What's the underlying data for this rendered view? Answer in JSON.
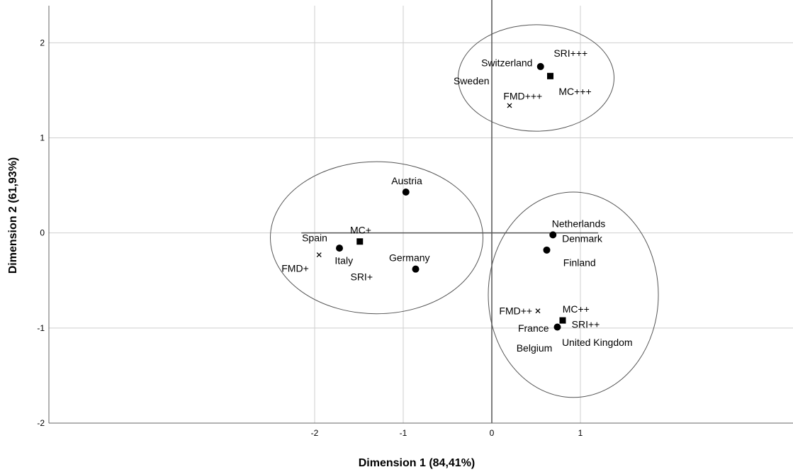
{
  "chart_data": {
    "type": "scatter",
    "xlabel": "Dimension 1 (84,41%)",
    "ylabel": "Dimension 2 (61,93%)",
    "xlim": [
      -5.0,
      3.4
    ],
    "ylim": [
      -2.0,
      2.45
    ],
    "x_ticks": [
      {
        "value": -2,
        "label": "-2"
      },
      {
        "value": -1,
        "label": "-1"
      },
      {
        "value": 0,
        "label": "0"
      },
      {
        "value": 1,
        "label": "1"
      }
    ],
    "y_ticks": [
      {
        "value": -2,
        "label": "-2"
      },
      {
        "value": -1,
        "label": "-1"
      },
      {
        "value": 0,
        "label": "0"
      },
      {
        "value": 1,
        "label": "1"
      },
      {
        "value": 2,
        "label": "2"
      }
    ],
    "grid": true,
    "legend": "none",
    "reference_lines": {
      "x0_line": {
        "from": -2.0,
        "to": 2.45
      },
      "y0_line": {
        "from": -2.15,
        "to": 1.2
      }
    },
    "groups": [
      {
        "cx": -1.3,
        "cy": -0.05,
        "rx": 1.2,
        "ry": 0.8
      },
      {
        "cx": 0.92,
        "cy": -0.65,
        "rx": 0.96,
        "ry": 1.08
      },
      {
        "cx": 0.5,
        "cy": 1.63,
        "rx": 0.88,
        "ry": 0.56
      }
    ],
    "points": [
      {
        "name": "Switzerland",
        "x": 0.55,
        "y": 1.75,
        "marker": "circle"
      },
      {
        "name": "Sweden",
        "x": 0.55,
        "y": 1.75,
        "marker": "circle"
      },
      {
        "name": "SRI+++",
        "x": 0.66,
        "y": 1.65,
        "marker": "square"
      },
      {
        "name": "MC+++",
        "x": 0.66,
        "y": 1.65,
        "marker": "square"
      },
      {
        "name": "FMD+++",
        "x": 0.2,
        "y": 1.34,
        "marker": "cross"
      },
      {
        "name": "Austria",
        "x": -0.97,
        "y": 0.43,
        "marker": "circle"
      },
      {
        "name": "Spain",
        "x": -1.72,
        "y": -0.16,
        "marker": "circle"
      },
      {
        "name": "Italy",
        "x": -1.72,
        "y": -0.16,
        "marker": "circle"
      },
      {
        "name": "MC+",
        "x": -1.49,
        "y": -0.09,
        "marker": "square"
      },
      {
        "name": "SRI+",
        "x": -1.49,
        "y": -0.09,
        "marker": "square"
      },
      {
        "name": "FMD+",
        "x": -1.95,
        "y": -0.23,
        "marker": "cross"
      },
      {
        "name": "Germany",
        "x": -0.86,
        "y": -0.38,
        "marker": "circle"
      },
      {
        "name": "Netherlands",
        "x": 0.69,
        "y": -0.02,
        "marker": "circle"
      },
      {
        "name": "Denmark",
        "x": 0.69,
        "y": -0.02,
        "marker": "circle"
      },
      {
        "name": "Finland",
        "x": 0.62,
        "y": -0.18,
        "marker": "circle"
      },
      {
        "name": "MC++",
        "x": 0.8,
        "y": -0.92,
        "marker": "square"
      },
      {
        "name": "SRI++",
        "x": 0.8,
        "y": -0.92,
        "marker": "square"
      },
      {
        "name": "France",
        "x": 0.74,
        "y": -0.99,
        "marker": "circle"
      },
      {
        "name": "Belgium",
        "x": 0.74,
        "y": -0.99,
        "marker": "circle"
      },
      {
        "name": "United Kingdom",
        "x": 0.74,
        "y": -0.99,
        "marker": "circle"
      },
      {
        "name": "FMD++",
        "x": 0.52,
        "y": -0.82,
        "marker": "cross"
      }
    ],
    "point_labels": [
      {
        "text": "Switzerland",
        "x": 0.17,
        "y": 1.79
      },
      {
        "text": "SRI+++",
        "x": 0.89,
        "y": 1.89
      },
      {
        "text": "Sweden",
        "x": -0.23,
        "y": 1.6
      },
      {
        "text": "MC+++",
        "x": 0.94,
        "y": 1.49
      },
      {
        "text": "FMD+++",
        "x": 0.35,
        "y": 1.44
      },
      {
        "text": "Austria",
        "x": -0.96,
        "y": 0.55
      },
      {
        "text": "Spain",
        "x": -2.0,
        "y": -0.05
      },
      {
        "text": "MC+",
        "x": -1.48,
        "y": 0.03
      },
      {
        "text": "Italy",
        "x": -1.67,
        "y": -0.29
      },
      {
        "text": "FMD+",
        "x": -2.22,
        "y": -0.37
      },
      {
        "text": "SRI+",
        "x": -1.47,
        "y": -0.46
      },
      {
        "text": "Germany",
        "x": -0.93,
        "y": -0.26
      },
      {
        "text": "Netherlands",
        "x": 0.98,
        "y": 0.1
      },
      {
        "text": "Denmark",
        "x": 1.02,
        "y": -0.06
      },
      {
        "text": "Finland",
        "x": 0.99,
        "y": -0.31
      },
      {
        "text": "FMD++",
        "x": 0.27,
        "y": -0.82
      },
      {
        "text": "MC++",
        "x": 0.95,
        "y": -0.8
      },
      {
        "text": "France",
        "x": 0.47,
        "y": -1.0
      },
      {
        "text": "SRI++",
        "x": 1.06,
        "y": -0.96
      },
      {
        "text": "Belgium",
        "x": 0.48,
        "y": -1.21
      },
      {
        "text": "United Kingdom",
        "x": 1.19,
        "y": -1.15
      }
    ]
  }
}
